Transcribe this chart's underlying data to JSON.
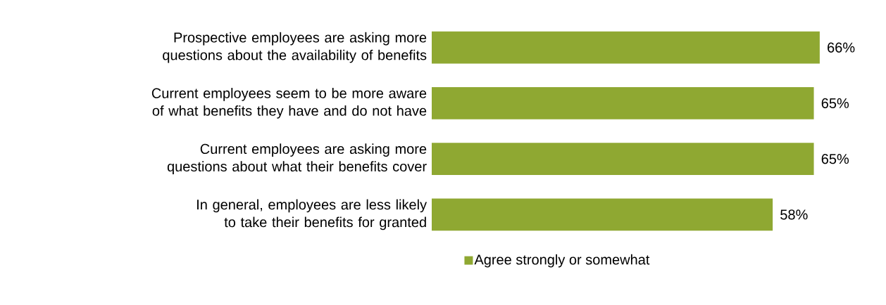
{
  "chart_data": {
    "type": "bar",
    "orientation": "horizontal",
    "categories": [
      "Prospective employees are asking more questions about the availability of benefits",
      "Current employees seem to be more aware of what benefits they have and do not have",
      "Current employees are asking more questions about what their benefits cover",
      "In general, employees are less likely to take their benefits for granted"
    ],
    "series": [
      {
        "name": "Agree strongly or somewhat",
        "color": "#8fa832",
        "values": [
          66,
          65,
          65,
          58
        ],
        "value_labels": [
          "66%",
          "65%",
          "65%",
          "58%"
        ]
      }
    ],
    "relative": false,
    "legend": "bottom"
  }
}
